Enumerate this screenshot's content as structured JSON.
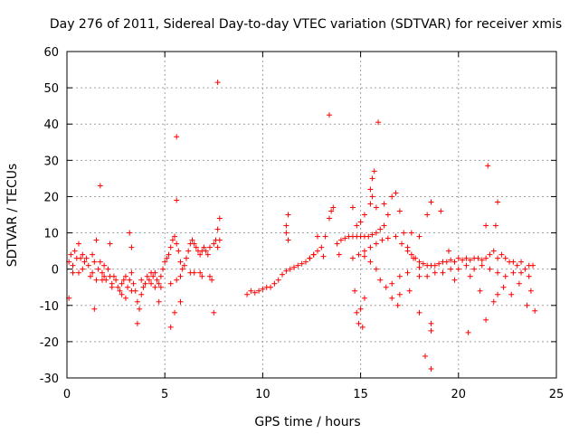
{
  "chart_data": {
    "type": "scatter",
    "title": "Day 276 of 2011, Sidereal Day-to-day VTEC variation (SDTVAR) for receiver xmis",
    "xlabel": "GPS time / hours",
    "ylabel": "SDTVAR / TECUs",
    "xlim": [
      0,
      25
    ],
    "ylim": [
      -30,
      60
    ],
    "xticks": [
      0,
      5,
      10,
      15,
      20,
      25
    ],
    "yticks": [
      -30,
      -20,
      -10,
      0,
      10,
      20,
      30,
      40,
      50,
      60
    ],
    "grid": true,
    "marker": "+",
    "color": "#ff0000",
    "series": [
      {
        "name": "SDTVAR",
        "points": [
          [
            0.1,
            2
          ],
          [
            0.2,
            4
          ],
          [
            0.3,
            1
          ],
          [
            0.4,
            5
          ],
          [
            0.5,
            3
          ],
          [
            0.6,
            -1
          ],
          [
            0.7,
            3
          ],
          [
            0.8,
            4
          ],
          [
            0.9,
            2
          ],
          [
            1.0,
            3
          ],
          [
            1.1,
            1
          ],
          [
            1.2,
            -2
          ],
          [
            1.3,
            4
          ],
          [
            1.4,
            2
          ],
          [
            1.5,
            -3
          ],
          [
            1.6,
            0
          ],
          [
            1.7,
            2
          ],
          [
            1.8,
            -1
          ],
          [
            1.9,
            1
          ],
          [
            2.0,
            -3
          ],
          [
            2.1,
            0
          ],
          [
            2.2,
            -2
          ],
          [
            2.3,
            -4
          ],
          [
            2.4,
            -2
          ],
          [
            2.5,
            -3
          ],
          [
            2.6,
            -5
          ],
          [
            2.7,
            -6
          ],
          [
            2.8,
            -4
          ],
          [
            2.9,
            -3
          ],
          [
            3.0,
            -2
          ],
          [
            3.1,
            -5
          ],
          [
            3.2,
            -3
          ],
          [
            3.3,
            -1
          ],
          [
            3.4,
            -4
          ],
          [
            3.5,
            -6
          ],
          [
            3.6,
            -9
          ],
          [
            3.7,
            -11
          ],
          [
            3.8,
            -7
          ],
          [
            3.9,
            -5
          ],
          [
            4.0,
            -4
          ],
          [
            4.1,
            -2
          ],
          [
            4.2,
            -3
          ],
          [
            4.3,
            -4
          ],
          [
            4.4,
            -2
          ],
          [
            4.5,
            -1
          ],
          [
            4.6,
            -3
          ],
          [
            4.7,
            -4
          ],
          [
            4.8,
            -2
          ],
          [
            4.9,
            0
          ],
          [
            5.0,
            2
          ],
          [
            5.1,
            3
          ],
          [
            5.2,
            4
          ],
          [
            5.3,
            6
          ],
          [
            5.4,
            8
          ],
          [
            5.5,
            9
          ],
          [
            5.6,
            7
          ],
          [
            5.7,
            5
          ],
          [
            5.8,
            2
          ],
          [
            5.9,
            0
          ],
          [
            6.0,
            1
          ],
          [
            6.1,
            3
          ],
          [
            6.2,
            5
          ],
          [
            6.3,
            7
          ],
          [
            6.4,
            8
          ],
          [
            6.5,
            7
          ],
          [
            6.6,
            6
          ],
          [
            6.7,
            5
          ],
          [
            6.8,
            4
          ],
          [
            6.9,
            5
          ],
          [
            7.0,
            6
          ],
          [
            7.1,
            5
          ],
          [
            7.2,
            4
          ],
          [
            7.3,
            6
          ],
          [
            7.4,
            -3
          ],
          [
            7.5,
            7
          ],
          [
            7.6,
            8
          ],
          [
            7.7,
            6
          ],
          [
            7.8,
            8
          ],
          [
            0.3,
            -1
          ],
          [
            0.8,
            0
          ],
          [
            1.3,
            -1
          ],
          [
            1.8,
            -3
          ],
          [
            2.3,
            -5
          ],
          [
            2.8,
            -7
          ],
          [
            3.3,
            -6
          ],
          [
            3.8,
            -3
          ],
          [
            4.3,
            -1
          ],
          [
            4.8,
            -5
          ],
          [
            5.3,
            -4
          ],
          [
            5.8,
            -2
          ],
          [
            6.3,
            -1
          ],
          [
            6.8,
            -1
          ],
          [
            7.3,
            -2
          ],
          [
            6.5,
            -1
          ],
          [
            6.9,
            -2
          ],
          [
            5.6,
            -3
          ],
          [
            4.5,
            -5
          ],
          [
            3.0,
            -8
          ],
          [
            1.7,
            23
          ],
          [
            1.5,
            8
          ],
          [
            0.6,
            7
          ],
          [
            3.2,
            10
          ],
          [
            3.3,
            6
          ],
          [
            3.6,
            -15
          ],
          [
            1.4,
            -11
          ],
          [
            5.6,
            36.5
          ],
          [
            5.6,
            19
          ],
          [
            5.3,
            -16
          ],
          [
            5.8,
            -9
          ],
          [
            7.7,
            51.5
          ],
          [
            7.5,
            -12
          ],
          [
            7.8,
            14
          ],
          [
            7.7,
            11
          ],
          [
            0.1,
            -8
          ],
          [
            2.2,
            7
          ],
          [
            1.9,
            -2
          ],
          [
            4.7,
            -9
          ],
          [
            5.5,
            -12
          ],
          [
            9.2,
            -7
          ],
          [
            9.4,
            -6
          ],
          [
            9.6,
            -6.5
          ],
          [
            9.8,
            -6
          ],
          [
            10.0,
            -5.5
          ],
          [
            10.2,
            -5
          ],
          [
            10.4,
            -5
          ],
          [
            10.6,
            -4
          ],
          [
            10.8,
            -3
          ],
          [
            11.0,
            -1.5
          ],
          [
            11.2,
            -0.5
          ],
          [
            11.4,
            0
          ],
          [
            11.6,
            0.5
          ],
          [
            11.8,
            1
          ],
          [
            12.0,
            1.5
          ],
          [
            12.2,
            2
          ],
          [
            12.4,
            3
          ],
          [
            12.6,
            4
          ],
          [
            12.8,
            5
          ],
          [
            13.0,
            6
          ],
          [
            13.2,
            9
          ],
          [
            13.4,
            14
          ],
          [
            13.5,
            16
          ],
          [
            13.6,
            17
          ],
          [
            13.8,
            7
          ],
          [
            14.0,
            8
          ],
          [
            14.2,
            8.5
          ],
          [
            14.4,
            9
          ],
          [
            14.6,
            9
          ],
          [
            14.8,
            9
          ],
          [
            15.0,
            9
          ],
          [
            15.2,
            9
          ],
          [
            15.4,
            9
          ],
          [
            15.6,
            9.5
          ],
          [
            15.8,
            10
          ],
          [
            16.0,
            11
          ],
          [
            16.2,
            12
          ],
          [
            16.4,
            15
          ],
          [
            16.6,
            20
          ],
          [
            16.8,
            21
          ],
          [
            17.0,
            16
          ],
          [
            17.2,
            10
          ],
          [
            17.4,
            6
          ],
          [
            17.6,
            4
          ],
          [
            17.8,
            3
          ],
          [
            18.0,
            2
          ],
          [
            18.2,
            1.5
          ],
          [
            18.4,
            1
          ],
          [
            18.6,
            1
          ],
          [
            18.8,
            1
          ],
          [
            19.0,
            1.5
          ],
          [
            19.2,
            2
          ],
          [
            19.4,
            2
          ],
          [
            19.6,
            2.5
          ],
          [
            19.8,
            2
          ],
          [
            20.0,
            3
          ],
          [
            20.2,
            2.5
          ],
          [
            20.4,
            3
          ],
          [
            20.6,
            2.5
          ],
          [
            20.8,
            3
          ],
          [
            21.0,
            3
          ],
          [
            21.2,
            2.5
          ],
          [
            21.4,
            3
          ],
          [
            21.6,
            4
          ],
          [
            21.8,
            5
          ],
          [
            22.0,
            3
          ],
          [
            22.2,
            4
          ],
          [
            22.4,
            3
          ],
          [
            22.6,
            2
          ],
          [
            22.8,
            2
          ],
          [
            23.0,
            1
          ],
          [
            23.2,
            2
          ],
          [
            23.4,
            0
          ],
          [
            23.6,
            1
          ],
          [
            23.8,
            1
          ],
          [
            15.6,
            20
          ],
          [
            15.6,
            25
          ],
          [
            15.5,
            22
          ],
          [
            15.7,
            27
          ],
          [
            15.5,
            18
          ],
          [
            15.2,
            15
          ],
          [
            15.0,
            13
          ],
          [
            14.8,
            12
          ],
          [
            15.8,
            17
          ],
          [
            16.2,
            18
          ],
          [
            15.2,
            5
          ],
          [
            15.5,
            6
          ],
          [
            15.8,
            7
          ],
          [
            16.1,
            8
          ],
          [
            16.4,
            8.5
          ],
          [
            16.8,
            9
          ],
          [
            17.1,
            7
          ],
          [
            17.4,
            5
          ],
          [
            17.7,
            3
          ],
          [
            18.0,
            0.5
          ],
          [
            14.6,
            3
          ],
          [
            14.9,
            4
          ],
          [
            15.2,
            3.5
          ],
          [
            15.5,
            2
          ],
          [
            15.8,
            0
          ],
          [
            16.0,
            -3
          ],
          [
            16.3,
            -5
          ],
          [
            16.6,
            -4
          ],
          [
            17.0,
            -2
          ],
          [
            17.4,
            -1
          ],
          [
            18.0,
            -2
          ],
          [
            18.4,
            -2
          ],
          [
            18.8,
            -1
          ],
          [
            19.2,
            -1
          ],
          [
            19.6,
            0
          ],
          [
            20.0,
            0
          ],
          [
            20.4,
            1
          ],
          [
            20.8,
            0
          ],
          [
            21.2,
            1
          ],
          [
            21.6,
            0
          ],
          [
            22.0,
            -1
          ],
          [
            22.4,
            -2
          ],
          [
            22.8,
            -1
          ],
          [
            23.2,
            -1
          ],
          [
            23.6,
            -2
          ],
          [
            13.4,
            42.5
          ],
          [
            15.9,
            40.5
          ],
          [
            18.6,
            18.5
          ],
          [
            19.1,
            16
          ],
          [
            18.0,
            9
          ],
          [
            17.6,
            10
          ],
          [
            18.4,
            15
          ],
          [
            18.6,
            -15
          ],
          [
            18.3,
            -24
          ],
          [
            18.6,
            -27.5
          ],
          [
            18.6,
            -17
          ],
          [
            18.0,
            -12
          ],
          [
            17.5,
            -6
          ],
          [
            20.5,
            -17.5
          ],
          [
            21.5,
            28.5
          ],
          [
            21.4,
            -14
          ],
          [
            21.4,
            12
          ],
          [
            22.0,
            18.5
          ],
          [
            21.9,
            12
          ],
          [
            22.0,
            -7
          ],
          [
            23.5,
            -10
          ],
          [
            23.9,
            -11.5
          ],
          [
            23.7,
            -6
          ],
          [
            14.8,
            -12
          ],
          [
            14.9,
            -15
          ],
          [
            15.1,
            -16
          ],
          [
            14.7,
            -6
          ],
          [
            15.2,
            -8
          ],
          [
            15.0,
            -11
          ],
          [
            14.6,
            17
          ],
          [
            11.3,
            15
          ],
          [
            11.2,
            12
          ],
          [
            11.2,
            10
          ],
          [
            11.3,
            8
          ],
          [
            13.9,
            4
          ],
          [
            13.1,
            3.5
          ],
          [
            12.8,
            9
          ],
          [
            12.6,
            4
          ],
          [
            12.4,
            3
          ],
          [
            19.5,
            5
          ],
          [
            19.8,
            -3
          ],
          [
            20.6,
            -2
          ],
          [
            21.1,
            -6
          ],
          [
            21.8,
            -9
          ],
          [
            22.3,
            -5
          ],
          [
            23.1,
            -4
          ],
          [
            22.7,
            -7
          ],
          [
            16.9,
            -10
          ],
          [
            16.6,
            -8
          ],
          [
            17.0,
            -7
          ]
        ]
      }
    ]
  }
}
